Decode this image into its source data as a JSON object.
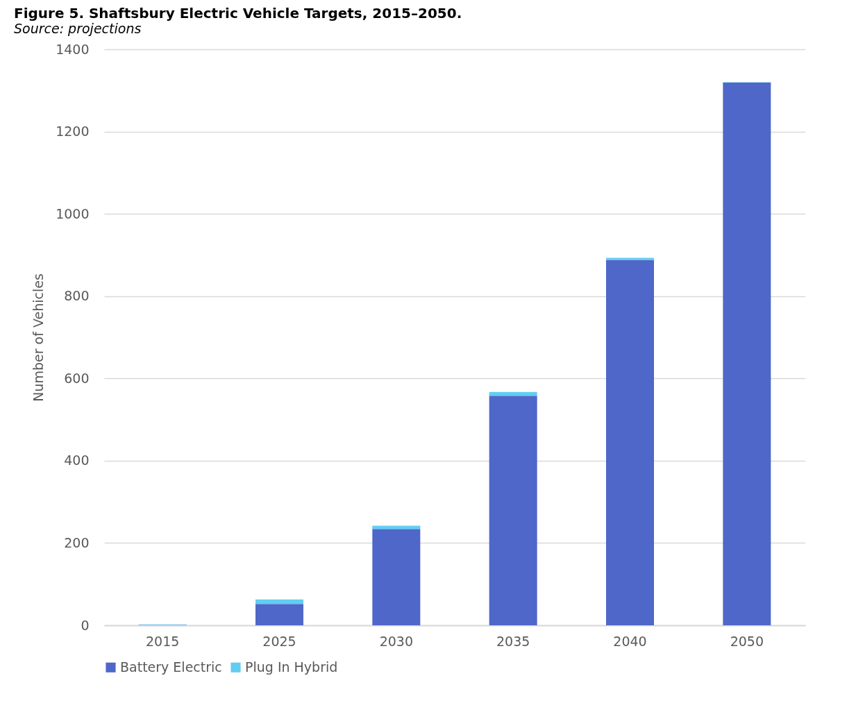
{
  "chart_data": {
    "type": "bar",
    "title": "Figure 5. Shaftsbury Electric Vehicle Targets, 2015–2050.",
    "annotations": [
      "Source: projections"
    ],
    "ylabel": "Number of Vehicles",
    "categories": [
      "2015",
      "2025",
      "2030",
      "2035",
      "2040",
      "2050"
    ],
    "stacked": true,
    "series": [
      {
        "name": "Battery Electric",
        "color": "#4f67c8",
        "values": [
          1,
          52,
          234,
          558,
          888,
          1319
        ]
      },
      {
        "name": "Plug In Hybrid",
        "color": "#62cdf1",
        "values": [
          1,
          11,
          8,
          9,
          5,
          1
        ]
      }
    ],
    "ylim": [
      0,
      1400
    ],
    "yticks": [
      0,
      200,
      400,
      600,
      800,
      1000,
      1200,
      1400
    ],
    "grid": "y",
    "legend": "bottom"
  }
}
